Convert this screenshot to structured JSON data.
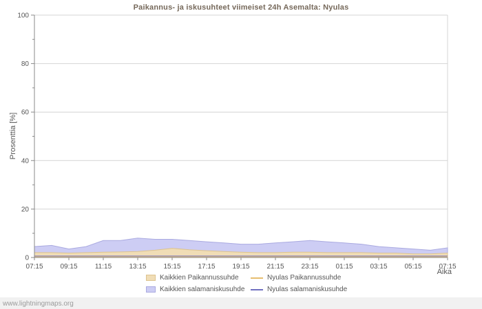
{
  "watermark": "www.lightningmaps.org",
  "chart_data": {
    "type": "area",
    "title": "Paikannus- ja iskusuhteet viimeiset 24h Asemalta: Nyulas",
    "ylabel": "Prosenttia  [%]",
    "xlabel": "Aika",
    "ylim": [
      0,
      100
    ],
    "yticks": [
      0,
      20,
      40,
      60,
      80,
      100
    ],
    "y_minor_step": 10,
    "grid": "horizontal-only",
    "legend_position": "bottom",
    "xtick_labels": [
      "07:15",
      "09:15",
      "11:15",
      "13:15",
      "15:15",
      "17:15",
      "19:15",
      "21:15",
      "23:15",
      "01:15",
      "03:15",
      "05:15",
      "07:15"
    ],
    "x_hours_span": 24,
    "series": [
      {
        "name": "Kaikkien Paikannussuhde",
        "kind": "area",
        "fill": "#f0ddb6",
        "stroke": "#ddc38e",
        "values": [
          2,
          2,
          1.8,
          2,
          2.2,
          2.3,
          2.5,
          3,
          3.8,
          3.2,
          2.8,
          2.5,
          2.2,
          2,
          2,
          2.2,
          2.2,
          2,
          2,
          2,
          1.8,
          1.8,
          1.5,
          1.5,
          1.8
        ]
      },
      {
        "name": "Kaikkien salamaniskusuhde",
        "kind": "area",
        "fill": "#cdcdf4",
        "stroke": "#a9a9e0",
        "values": [
          4.5,
          5,
          3.5,
          4.5,
          7,
          7,
          8,
          7.5,
          7.5,
          7,
          6.5,
          6,
          5.5,
          5.5,
          6,
          6.5,
          7,
          6.5,
          6,
          5.5,
          4.5,
          4,
          3.5,
          3,
          4
        ]
      },
      {
        "name": "Nyulas Paikannussuhde",
        "kind": "line",
        "color": "#e6bd6e",
        "values": [
          0.3,
          0.3,
          0.3,
          0.3,
          0.3,
          0.3,
          0.3,
          0.3,
          0.3,
          0.3,
          0.3,
          0.3,
          0.3,
          0.3,
          0.3,
          0.3,
          0.3,
          0.3,
          0.3,
          0.3,
          0.3,
          0.3,
          0.3,
          0.3,
          0.3
        ]
      },
      {
        "name": "Nyulas salamaniskusuhde",
        "kind": "line",
        "color": "#6f6fc0",
        "values": [
          0.6,
          0.6,
          0.6,
          0.6,
          0.6,
          0.6,
          0.6,
          0.6,
          0.6,
          0.6,
          0.6,
          0.6,
          0.6,
          0.6,
          0.6,
          0.6,
          0.6,
          0.6,
          0.6,
          0.6,
          0.6,
          0.6,
          0.6,
          0.6,
          0.6
        ]
      }
    ]
  }
}
